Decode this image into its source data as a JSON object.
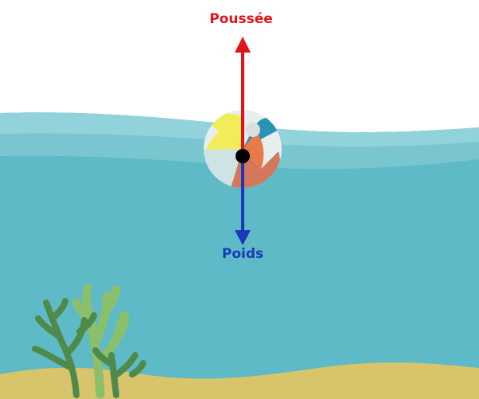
{
  "forces": {
    "up": {
      "label": "Poussée",
      "color": "#e0141c"
    },
    "down": {
      "label": "Poids",
      "color": "#1a3ab8"
    }
  },
  "colors": {
    "water": "#5dbac6",
    "water_light": "#79c6d0",
    "water_lighter": "#92d2da",
    "sand": "#d8c46a",
    "seaweed_dark": "#4f8a4a",
    "seaweed_light": "#8cbf6c",
    "ball_white": "#e8eeee",
    "ball_yellow": "#f2ec5a",
    "ball_orange": "#e87a4a",
    "ball_teal": "#2a93b5",
    "ball_brown": "#d4785c",
    "ball_pale": "#cfe2e4",
    "center_dot": "#000000"
  }
}
